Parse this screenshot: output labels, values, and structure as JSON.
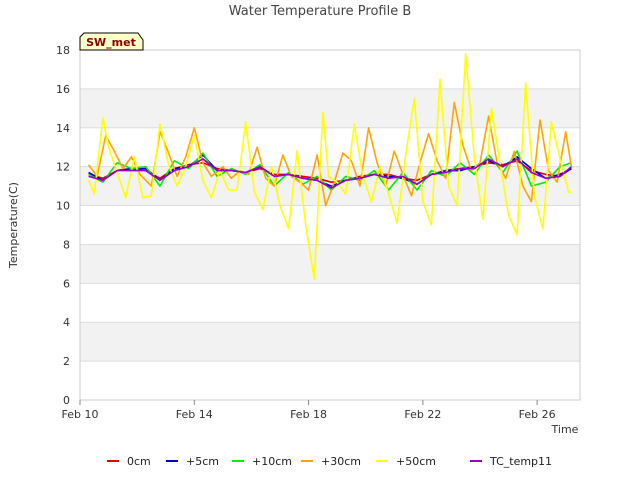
{
  "chart_data": {
    "type": "line",
    "title": "Water Temperature Profile B",
    "xlabel": "Time",
    "ylabel": "Temperature(C)",
    "badge": "SW_met",
    "ylim": [
      0,
      18
    ],
    "xlim": [
      10,
      27.5
    ],
    "x_unit": "day of February",
    "y_ticks": [
      0,
      2,
      4,
      6,
      8,
      10,
      12,
      14,
      16,
      18
    ],
    "x_ticks": [
      {
        "value": 10,
        "label": "Feb 10"
      },
      {
        "value": 14,
        "label": "Feb 14"
      },
      {
        "value": 18,
        "label": "Feb 18"
      },
      {
        "value": 22,
        "label": "Feb 22"
      },
      {
        "value": 26,
        "label": "Feb 26"
      }
    ],
    "grid": true,
    "legend_position": "bottom",
    "series": [
      {
        "name": "0cm",
        "color": "#dd0000",
        "x": [
          10.3,
          10.8,
          11.3,
          11.8,
          12.3,
          12.8,
          13.3,
          13.8,
          14.3,
          14.8,
          15.3,
          15.8,
          16.3,
          16.8,
          17.3,
          17.8,
          18.3,
          18.8,
          19.3,
          19.8,
          20.3,
          20.8,
          21.3,
          21.8,
          22.3,
          22.8,
          23.3,
          23.8,
          24.3,
          24.8,
          25.3,
          25.8,
          26.3,
          26.8,
          27.2
        ],
        "y": [
          11.6,
          11.4,
          11.8,
          11.9,
          11.8,
          11.4,
          11.9,
          12.1,
          12.2,
          11.9,
          11.8,
          11.7,
          11.9,
          11.6,
          11.6,
          11.5,
          11.4,
          11.2,
          11.3,
          11.5,
          11.6,
          11.6,
          11.4,
          11.3,
          11.6,
          11.8,
          11.9,
          12.0,
          12.2,
          12.1,
          12.3,
          11.8,
          11.6,
          11.5,
          11.9
        ]
      },
      {
        "name": "+5cm",
        "color": "#0000cc",
        "x": [
          10.3,
          10.8,
          11.3,
          11.8,
          12.3,
          12.8,
          13.3,
          13.8,
          14.3,
          14.8,
          15.3,
          15.8,
          16.3,
          16.8,
          17.3,
          17.8,
          18.3,
          18.8,
          19.3,
          19.8,
          20.3,
          20.8,
          21.3,
          21.8,
          22.3,
          22.8,
          23.3,
          23.8,
          24.3,
          24.8,
          25.3,
          25.8,
          26.3,
          26.8,
          27.2
        ],
        "y": [
          11.7,
          11.3,
          11.8,
          11.9,
          11.9,
          11.3,
          11.9,
          12.0,
          12.6,
          11.8,
          11.8,
          11.7,
          12.0,
          11.5,
          11.6,
          11.4,
          11.3,
          11.0,
          11.3,
          11.4,
          11.6,
          11.5,
          11.4,
          11.1,
          11.6,
          11.8,
          11.8,
          12.0,
          12.3,
          12.0,
          12.5,
          11.9,
          11.4,
          11.6,
          11.9
        ]
      },
      {
        "name": "+10cm",
        "color": "#00ee00",
        "x": [
          10.3,
          10.8,
          11.3,
          11.8,
          12.3,
          12.8,
          13.3,
          13.8,
          14.3,
          14.8,
          15.3,
          15.8,
          16.3,
          16.8,
          17.3,
          17.8,
          18.3,
          18.8,
          19.3,
          19.8,
          20.3,
          20.8,
          21.3,
          21.8,
          22.3,
          22.8,
          23.3,
          23.8,
          24.3,
          24.8,
          25.3,
          25.8,
          26.3,
          26.8,
          27.2
        ],
        "y": [
          11.6,
          11.2,
          12.2,
          11.9,
          12.0,
          11.0,
          12.3,
          11.9,
          12.7,
          11.5,
          11.9,
          11.6,
          12.1,
          11.0,
          11.7,
          11.1,
          11.5,
          10.8,
          11.5,
          11.3,
          11.8,
          10.8,
          11.7,
          10.8,
          11.8,
          11.5,
          12.2,
          11.6,
          12.6,
          11.7,
          12.8,
          11.0,
          11.2,
          12.0,
          12.2
        ]
      },
      {
        "name": "+30cm",
        "color": "#ffa500",
        "x": [
          10.3,
          10.6,
          10.9,
          11.2,
          11.5,
          11.8,
          12.1,
          12.5,
          12.8,
          13.1,
          13.4,
          13.7,
          14.0,
          14.3,
          14.6,
          15.0,
          15.3,
          15.6,
          15.9,
          16.2,
          16.5,
          16.8,
          17.1,
          17.4,
          17.7,
          18.0,
          18.3,
          18.6,
          18.9,
          19.2,
          19.5,
          19.8,
          20.1,
          20.4,
          20.7,
          21.0,
          21.3,
          21.6,
          21.9,
          22.2,
          22.5,
          22.8,
          23.1,
          23.4,
          23.7,
          24.0,
          24.3,
          24.6,
          24.9,
          25.2,
          25.5,
          25.8,
          26.1,
          26.4,
          26.7,
          27.0,
          27.2
        ],
        "y": [
          12.1,
          11.5,
          13.6,
          12.8,
          11.9,
          12.5,
          11.6,
          11.0,
          13.8,
          12.7,
          11.5,
          12.5,
          14.0,
          12.2,
          11.5,
          12.0,
          11.4,
          11.8,
          11.6,
          13.0,
          11.4,
          11.0,
          12.6,
          11.5,
          11.2,
          10.8,
          12.6,
          10.0,
          11.2,
          12.7,
          12.3,
          11.0,
          14.0,
          12.2,
          11.0,
          12.8,
          11.6,
          10.5,
          12.2,
          13.7,
          12.3,
          11.4,
          15.3,
          13.1,
          11.8,
          12.2,
          14.6,
          12.2,
          11.4,
          12.8,
          11.0,
          10.2,
          14.4,
          11.8,
          11.2,
          13.8,
          12.0
        ]
      },
      {
        "name": "+50cm",
        "color": "#ffff00",
        "x": [
          10.3,
          10.5,
          10.8,
          11.0,
          11.3,
          11.6,
          11.9,
          12.2,
          12.5,
          12.8,
          13.1,
          13.4,
          13.7,
          14.0,
          14.3,
          14.6,
          14.9,
          15.2,
          15.5,
          15.8,
          16.1,
          16.4,
          16.7,
          17.0,
          17.3,
          17.6,
          17.9,
          18.2,
          18.5,
          18.7,
          19.0,
          19.3,
          19.6,
          19.9,
          20.2,
          20.5,
          20.8,
          21.1,
          21.4,
          21.7,
          22.0,
          22.3,
          22.6,
          22.9,
          23.2,
          23.5,
          23.8,
          24.1,
          24.4,
          24.7,
          25.0,
          25.3,
          25.6,
          25.9,
          26.2,
          26.5,
          26.8,
          27.1,
          27.2
        ],
        "y": [
          11.3,
          10.6,
          14.5,
          13.0,
          11.7,
          10.4,
          12.5,
          10.4,
          10.5,
          14.2,
          12.1,
          11.0,
          12.0,
          13.6,
          11.3,
          10.4,
          11.8,
          10.8,
          10.8,
          14.3,
          10.7,
          9.8,
          12.0,
          10.0,
          8.8,
          12.8,
          9.0,
          6.2,
          14.8,
          11.5,
          11.2,
          10.6,
          14.2,
          11.5,
          10.2,
          12.0,
          10.6,
          9.1,
          12.6,
          15.5,
          10.2,
          9.0,
          16.5,
          11.0,
          10.0,
          17.8,
          12.5,
          9.3,
          15.0,
          12.2,
          9.5,
          8.5,
          16.3,
          10.5,
          8.8,
          14.3,
          12.4,
          10.7,
          10.7
        ]
      },
      {
        "name": "TC_temp11",
        "color": "#9900cc",
        "x": [
          10.3,
          10.8,
          11.3,
          11.8,
          12.3,
          12.8,
          13.3,
          13.8,
          14.3,
          14.8,
          15.3,
          15.8,
          16.3,
          16.8,
          17.3,
          17.8,
          18.3,
          18.8,
          19.3,
          19.8,
          20.3,
          20.8,
          21.3,
          21.8,
          22.3,
          22.8,
          23.3,
          23.8,
          24.3,
          24.8,
          25.3,
          25.8,
          26.3,
          26.8,
          27.2
        ],
        "y": [
          11.5,
          11.3,
          11.8,
          11.8,
          11.8,
          11.3,
          11.8,
          12.0,
          12.4,
          11.8,
          11.8,
          11.7,
          12.0,
          11.5,
          11.6,
          11.4,
          11.3,
          10.9,
          11.3,
          11.4,
          11.6,
          11.4,
          11.5,
          11.1,
          11.6,
          11.7,
          11.9,
          11.9,
          12.4,
          12.0,
          12.4,
          11.7,
          11.4,
          11.5,
          12.0
        ]
      }
    ]
  }
}
